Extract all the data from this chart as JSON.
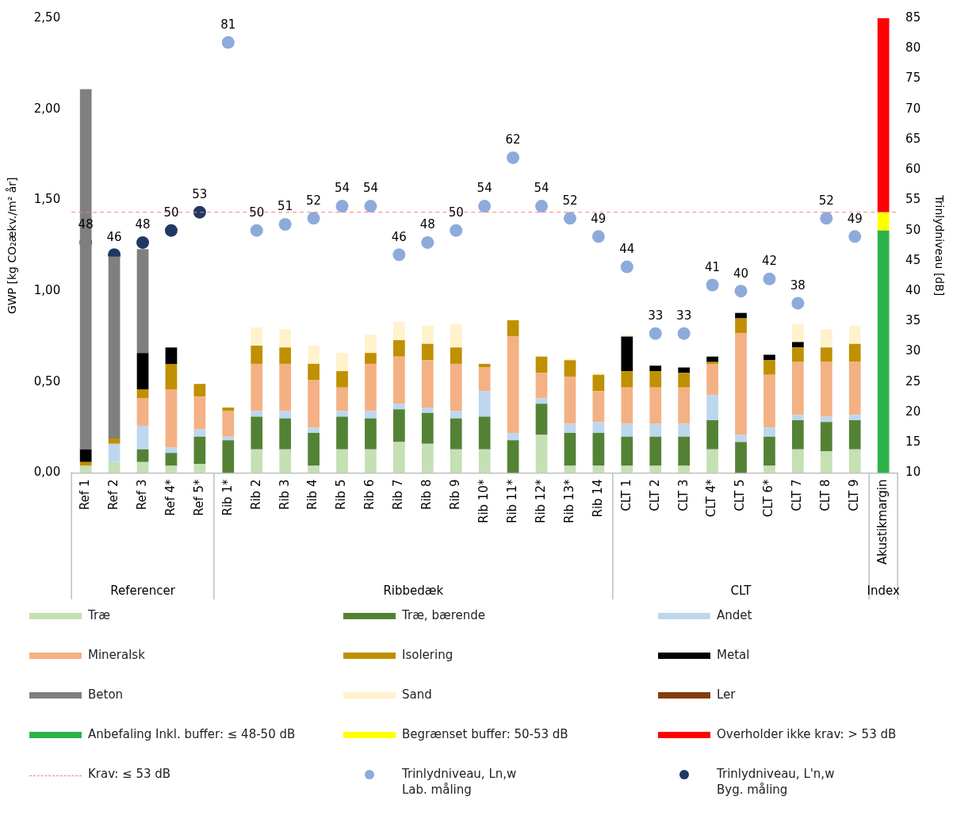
{
  "chart_data": {
    "type": "bar",
    "stacked": true,
    "ylabel": "GWP [kg CO₂ækv./m² år]",
    "y2label": "Trinlydniveau [dB]",
    "categories": [
      "Ref 1",
      "Ref 2",
      "Ref 3",
      "Ref 4*",
      "Ref 5*",
      "Rib 1*",
      "Rib 2",
      "Rib 3",
      "Rib 4",
      "Rib 5",
      "Rib 6",
      "Rib 7",
      "Rib 8",
      "Rib 9",
      "Rib 10*",
      "Rib 11*",
      "Rib 12*",
      "Rib 13*",
      "Rib 14",
      "CLT 1",
      "CLT 2",
      "CLT 3",
      "CLT 4*",
      "CLT 5",
      "CLT 6*",
      "CLT 7",
      "CLT 8",
      "CLT 9",
      "Akustikmargin"
    ],
    "ylim": [
      0,
      2.5
    ],
    "yticks": [
      {
        "value": 0,
        "label": "0,00"
      },
      {
        "value": 0.5,
        "label": "0,50"
      },
      {
        "value": 1,
        "label": "1,00"
      },
      {
        "value": 1.5,
        "label": "1,50"
      },
      {
        "value": 2,
        "label": "2,00"
      },
      {
        "value": 2.5,
        "label": "2,50"
      }
    ],
    "y2lim": [
      10,
      85
    ],
    "y2ticks": [
      10,
      15,
      20,
      25,
      30,
      35,
      40,
      45,
      50,
      55,
      60,
      65,
      70,
      75,
      80,
      85
    ],
    "grid": false,
    "legend": "bottom",
    "series": [
      {
        "name": "Træ",
        "color": "#c5e0b4",
        "values": [
          0.04,
          0.06,
          0.06,
          0.04,
          0.05,
          0,
          0.13,
          0.13,
          0.04,
          0.13,
          0.13,
          0.17,
          0.16,
          0.13,
          0.13,
          0,
          0.21,
          0.04,
          0.04,
          0.04,
          0.04,
          0.04,
          0.13,
          0,
          0.04,
          0.13,
          0.12,
          0.13,
          null
        ]
      },
      {
        "name": "Træ, bærende",
        "color": "#548235",
        "values": [
          0,
          0,
          0.07,
          0.07,
          0.15,
          0.18,
          0.18,
          0.17,
          0.18,
          0.18,
          0.17,
          0.18,
          0.17,
          0.17,
          0.18,
          0.18,
          0.17,
          0.18,
          0.18,
          0.16,
          0.16,
          0.16,
          0.16,
          0.17,
          0.16,
          0.16,
          0.16,
          0.16,
          null
        ]
      },
      {
        "name": "Andet",
        "color": "#bdd7ee",
        "values": [
          0,
          0.1,
          0.13,
          0.03,
          0.04,
          0.02,
          0.03,
          0.04,
          0.03,
          0.03,
          0.04,
          0.03,
          0.03,
          0.04,
          0.14,
          0.04,
          0.03,
          0.05,
          0.06,
          0.07,
          0.07,
          0.07,
          0.14,
          0.04,
          0.05,
          0.03,
          0.03,
          0.03,
          null
        ]
      },
      {
        "name": "Mineralsk",
        "color": "#f4b183",
        "values": [
          0,
          0,
          0.15,
          0.32,
          0.18,
          0.14,
          0.26,
          0.26,
          0.26,
          0.13,
          0.26,
          0.26,
          0.26,
          0.26,
          0.13,
          0.53,
          0.14,
          0.26,
          0.17,
          0.2,
          0.2,
          0.2,
          0.17,
          0.56,
          0.29,
          0.29,
          0.3,
          0.29,
          null
        ]
      },
      {
        "name": "Isolering",
        "color": "#bf9000",
        "values": [
          0.02,
          0.03,
          0.05,
          0.14,
          0.07,
          0.02,
          0.1,
          0.09,
          0.09,
          0.09,
          0.06,
          0.09,
          0.09,
          0.09,
          0.02,
          0.09,
          0.09,
          0.09,
          0.09,
          0.09,
          0.09,
          0.08,
          0.01,
          0.08,
          0.08,
          0.08,
          0.08,
          0.1,
          null
        ]
      },
      {
        "name": "Metal",
        "color": "#000000",
        "values": [
          0.07,
          0,
          0.2,
          0.09,
          0,
          0,
          0,
          0,
          0,
          0,
          0,
          0,
          0,
          0,
          0,
          0,
          0,
          0,
          0,
          0.19,
          0.03,
          0.03,
          0.03,
          0.03,
          0.03,
          0.03,
          0,
          0,
          null
        ]
      },
      {
        "name": "Beton",
        "color": "#7f7f7f",
        "values": [
          1.98,
          1,
          0.57,
          0,
          0,
          0,
          0,
          0,
          0,
          0,
          0,
          0,
          0,
          0,
          0,
          0,
          0,
          0,
          0,
          0,
          0,
          0,
          0,
          0,
          0,
          0,
          0,
          0,
          null
        ]
      },
      {
        "name": "Sand",
        "color": "#fff2cc",
        "values": [
          0,
          0,
          0,
          0,
          0,
          0,
          0.1,
          0.1,
          0.1,
          0.1,
          0.1,
          0.1,
          0.1,
          0.13,
          0,
          0,
          0,
          0.01,
          0.01,
          0.01,
          0,
          0,
          0,
          0,
          0,
          0.1,
          0.1,
          0.1,
          null
        ]
      },
      {
        "name": "Ler",
        "color": "#843c0c",
        "values": [
          0,
          0,
          0,
          0,
          0,
          0,
          0,
          0,
          0,
          0,
          0,
          0,
          0,
          0,
          0,
          0,
          0,
          0,
          0,
          0,
          0,
          0,
          0,
          0,
          0,
          0,
          0,
          0,
          null
        ]
      },
      {
        "name": "Anbefaling Inkl. buffer:  ≤ 48-50 dB",
        "color": "#2eb24a",
        "axis": "y2",
        "base": [
          null,
          null,
          null,
          null,
          null,
          null,
          null,
          null,
          null,
          null,
          null,
          null,
          null,
          null,
          null,
          null,
          null,
          null,
          null,
          null,
          null,
          null,
          null,
          null,
          null,
          null,
          null,
          null,
          10
        ],
        "values": [
          null,
          null,
          null,
          null,
          null,
          null,
          null,
          null,
          null,
          null,
          null,
          null,
          null,
          null,
          null,
          null,
          null,
          null,
          null,
          null,
          null,
          null,
          null,
          null,
          null,
          null,
          null,
          null,
          40
        ]
      },
      {
        "name": "Begrænset buffer: 50-53 dB",
        "color": "#ffff00",
        "axis": "y2",
        "base": [
          null,
          null,
          null,
          null,
          null,
          null,
          null,
          null,
          null,
          null,
          null,
          null,
          null,
          null,
          null,
          null,
          null,
          null,
          null,
          null,
          null,
          null,
          null,
          null,
          null,
          null,
          null,
          null,
          50
        ],
        "values": [
          null,
          null,
          null,
          null,
          null,
          null,
          null,
          null,
          null,
          null,
          null,
          null,
          null,
          null,
          null,
          null,
          null,
          null,
          null,
          null,
          null,
          null,
          null,
          null,
          null,
          null,
          null,
          null,
          3
        ]
      },
      {
        "name": "Overholder ikke krav: > 53 dB",
        "color": "#ff0000",
        "axis": "y2",
        "base": [
          null,
          null,
          null,
          null,
          null,
          null,
          null,
          null,
          null,
          null,
          null,
          null,
          null,
          null,
          null,
          null,
          null,
          null,
          null,
          null,
          null,
          null,
          null,
          null,
          null,
          null,
          null,
          null,
          53
        ],
        "values": [
          null,
          null,
          null,
          null,
          null,
          null,
          null,
          null,
          null,
          null,
          null,
          null,
          null,
          null,
          null,
          null,
          null,
          null,
          null,
          null,
          null,
          null,
          null,
          null,
          null,
          null,
          null,
          null,
          32
        ]
      },
      {
        "name": "Trinlydniveau, Ln,w\nLab. måling",
        "type": "scatter",
        "marker": "circle",
        "color": "#8eaadb",
        "axis": "y2",
        "values": [
          null,
          null,
          null,
          null,
          null,
          81,
          50,
          51,
          52,
          54,
          54,
          46,
          48,
          50,
          54,
          62,
          54,
          52,
          49,
          44,
          33,
          33,
          41,
          40,
          42,
          38,
          52,
          49,
          null
        ],
        "value_labels": [
          null,
          null,
          null,
          null,
          null,
          "81",
          "50",
          "51",
          "52",
          "54",
          "54",
          "46",
          "48",
          "50",
          "54",
          "62",
          "54",
          "52",
          "49",
          "44",
          "33",
          "33",
          "41",
          "40",
          "42",
          "38",
          "52",
          "49",
          null
        ]
      },
      {
        "name": "Trinlydniveau, L'n,w\nByg. måling",
        "type": "scatter",
        "marker": "circle",
        "color": "#203864",
        "axis": "y2",
        "values": [
          48,
          46,
          48,
          50,
          53,
          null,
          null,
          null,
          null,
          null,
          null,
          null,
          null,
          null,
          null,
          null,
          null,
          null,
          null,
          null,
          null,
          null,
          null,
          null,
          null,
          null,
          null,
          null,
          null
        ],
        "value_labels": [
          "48",
          "46",
          "48",
          "50",
          "53",
          null,
          null,
          null,
          null,
          null,
          null,
          null,
          null,
          null,
          null,
          null,
          null,
          null,
          null,
          null,
          null,
          null,
          null,
          null,
          null,
          null,
          null,
          null,
          null
        ]
      }
    ],
    "ref_lines": [
      {
        "axis": "y2",
        "value": 53,
        "label": "Krav: ≤ 53 dB",
        "color": "#ff7c80",
        "line_style": "dashed"
      }
    ],
    "annotations": [
      "Referencer",
      "Ribbedæk",
      "CLT",
      "Index"
    ]
  }
}
